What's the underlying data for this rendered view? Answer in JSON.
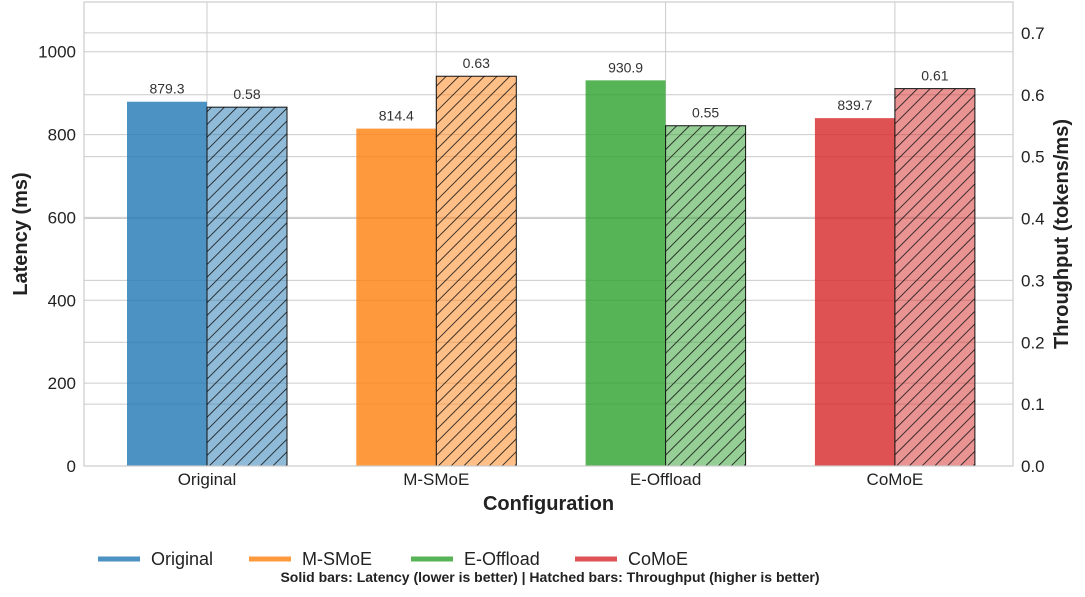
{
  "chart_data": {
    "type": "bar",
    "categories": [
      "Original",
      "M-SMoE",
      "E-Offload",
      "CoMoE"
    ],
    "series": [
      {
        "name": "Latency (ms)",
        "axis": "left",
        "style": "solid",
        "values": [
          879.3,
          814.4,
          930.9,
          839.7
        ],
        "labels": [
          "879.3",
          "814.4",
          "930.9",
          "839.7"
        ]
      },
      {
        "name": "Throughput (tokens/ms)",
        "axis": "right",
        "style": "hatched",
        "values": [
          0.58,
          0.63,
          0.55,
          0.61
        ],
        "labels": [
          "0.58",
          "0.63",
          "0.55",
          "0.61"
        ]
      }
    ],
    "colors": [
      "#1f77b4",
      "#ff7f0e",
      "#2ca02c",
      "#d62728"
    ],
    "xlabel": "Configuration",
    "ylabel": "Latency (ms)",
    "y2label": "Throughput (tokens/ms)",
    "ylim": [
      0,
      1120
    ],
    "y2lim": [
      0,
      0.75
    ],
    "yticks": [
      0,
      200,
      400,
      600,
      800,
      1000
    ],
    "ytick_labels": [
      "0",
      "200",
      "400",
      "600",
      "800",
      "1000"
    ],
    "y2ticks": [
      0,
      0.1,
      0.2,
      0.3,
      0.4,
      0.5,
      0.6,
      0.7
    ],
    "y2tick_labels": [
      "0.0",
      "0.1",
      "0.2",
      "0.3",
      "0.4",
      "0.5",
      "0.6",
      "0.7"
    ],
    "grid": true,
    "legend": {
      "placement": "bottom",
      "entries": [
        "Original",
        "M-SMoE",
        "E-Offload",
        "CoMoE"
      ]
    },
    "note": "Solid bars: Latency (lower is better) | Hatched bars: Throughput (higher is better)"
  }
}
